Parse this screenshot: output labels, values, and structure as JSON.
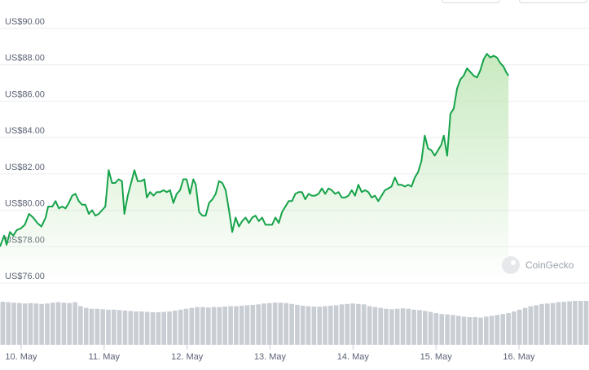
{
  "chart_data": {
    "type": "area",
    "currency_prefix": "US$",
    "y_ticks": [
      "US$90.00",
      "US$88.00",
      "US$86.00",
      "US$84.00",
      "US$82.00",
      "US$80.00",
      "US$78.00",
      "US$76.00"
    ],
    "y_tick_values": [
      90,
      88,
      86,
      84,
      82,
      80,
      78,
      76
    ],
    "x_ticks": [
      "10. May",
      "11. May",
      "12. May",
      "13. May",
      "14. May",
      "15. May",
      "16. May"
    ],
    "x_tick_positions": [
      10.5,
      11.5,
      12.5,
      13.5,
      14.5,
      15.5,
      16.5
    ],
    "xlim": [
      9.95,
      17.05
    ],
    "ylim": [
      75.6,
      90.4
    ],
    "line_color": "#16a34a",
    "fill_color_top": "#bfe6b5",
    "volume_color": "#c9cdd4",
    "price": [
      [
        9.95,
        77.6
      ],
      [
        10.0,
        78.2
      ],
      [
        10.03,
        77.7
      ],
      [
        10.07,
        78.4
      ],
      [
        10.11,
        78.2
      ],
      [
        10.15,
        78.5
      ],
      [
        10.2,
        78.6
      ],
      [
        10.25,
        78.8
      ],
      [
        10.3,
        79.4
      ],
      [
        10.35,
        79.2
      ],
      [
        10.4,
        78.9
      ],
      [
        10.45,
        78.7
      ],
      [
        10.5,
        79.2
      ],
      [
        10.53,
        79.8
      ],
      [
        10.58,
        79.8
      ],
      [
        10.62,
        80.1
      ],
      [
        10.66,
        79.7
      ],
      [
        10.7,
        79.8
      ],
      [
        10.74,
        79.7
      ],
      [
        10.78,
        80.0
      ],
      [
        10.82,
        80.4
      ],
      [
        10.86,
        80.5
      ],
      [
        10.9,
        80.1
      ],
      [
        10.94,
        79.9
      ],
      [
        10.98,
        79.9
      ],
      [
        11.02,
        79.4
      ],
      [
        11.06,
        79.6
      ],
      [
        11.1,
        79.3
      ],
      [
        11.14,
        79.4
      ],
      [
        11.18,
        79.6
      ],
      [
        11.22,
        79.8
      ],
      [
        11.26,
        81.8
      ],
      [
        11.3,
        81.1
      ],
      [
        11.34,
        81.1
      ],
      [
        11.38,
        81.3
      ],
      [
        11.42,
        81.2
      ],
      [
        11.45,
        79.4
      ],
      [
        11.49,
        80.4
      ],
      [
        11.53,
        81.1
      ],
      [
        11.57,
        81.8
      ],
      [
        11.61,
        81.2
      ],
      [
        11.65,
        81.2
      ],
      [
        11.69,
        81.3
      ],
      [
        11.72,
        80.3
      ],
      [
        11.76,
        80.6
      ],
      [
        11.8,
        80.4
      ],
      [
        11.84,
        80.6
      ],
      [
        11.88,
        80.6
      ],
      [
        11.92,
        80.7
      ],
      [
        11.96,
        80.6
      ],
      [
        12.0,
        80.7
      ],
      [
        12.04,
        80.0
      ],
      [
        12.08,
        80.5
      ],
      [
        12.12,
        80.7
      ],
      [
        12.16,
        81.3
      ],
      [
        12.2,
        81.3
      ],
      [
        12.24,
        80.5
      ],
      [
        12.28,
        81.3
      ],
      [
        12.31,
        81.0
      ],
      [
        12.35,
        79.5
      ],
      [
        12.39,
        79.3
      ],
      [
        12.43,
        79.3
      ],
      [
        12.47,
        80.0
      ],
      [
        12.51,
        80.2
      ],
      [
        12.55,
        80.5
      ],
      [
        12.59,
        81.2
      ],
      [
        12.63,
        81.1
      ],
      [
        12.67,
        80.7
      ],
      [
        12.71,
        79.6
      ],
      [
        12.75,
        78.4
      ],
      [
        12.79,
        79.2
      ],
      [
        12.83,
        78.7
      ],
      [
        12.87,
        79.0
      ],
      [
        12.91,
        79.2
      ],
      [
        12.95,
        78.9
      ],
      [
        12.99,
        79.2
      ],
      [
        13.03,
        79.3
      ],
      [
        13.07,
        79.0
      ],
      [
        13.11,
        79.2
      ],
      [
        13.15,
        78.8
      ],
      [
        13.19,
        78.8
      ],
      [
        13.23,
        78.8
      ],
      [
        13.27,
        79.2
      ],
      [
        13.31,
        78.9
      ],
      [
        13.35,
        79.5
      ],
      [
        13.39,
        79.8
      ],
      [
        13.43,
        80.1
      ],
      [
        13.47,
        80.1
      ],
      [
        13.51,
        80.5
      ],
      [
        13.55,
        80.6
      ],
      [
        13.59,
        80.6
      ],
      [
        13.63,
        80.2
      ],
      [
        13.67,
        80.5
      ],
      [
        13.71,
        80.4
      ],
      [
        13.75,
        80.4
      ],
      [
        13.79,
        80.5
      ],
      [
        13.83,
        80.8
      ],
      [
        13.87,
        80.5
      ],
      [
        13.91,
        80.8
      ],
      [
        13.95,
        80.7
      ],
      [
        13.99,
        80.5
      ],
      [
        14.03,
        80.6
      ],
      [
        14.07,
        80.3
      ],
      [
        14.11,
        80.3
      ],
      [
        14.15,
        80.4
      ],
      [
        14.19,
        80.7
      ],
      [
        14.23,
        80.4
      ],
      [
        14.27,
        81.0
      ],
      [
        14.31,
        80.6
      ],
      [
        14.35,
        80.7
      ],
      [
        14.39,
        80.6
      ],
      [
        14.43,
        80.3
      ],
      [
        14.47,
        80.4
      ],
      [
        14.51,
        80.1
      ],
      [
        14.55,
        80.4
      ],
      [
        14.59,
        80.7
      ],
      [
        14.63,
        80.8
      ],
      [
        14.67,
        80.9
      ],
      [
        14.71,
        81.4
      ],
      [
        14.75,
        81.0
      ],
      [
        14.79,
        81.0
      ],
      [
        14.83,
        80.9
      ],
      [
        14.87,
        81.0
      ],
      [
        14.91,
        80.9
      ],
      [
        14.95,
        81.4
      ],
      [
        14.99,
        81.7
      ],
      [
        15.03,
        82.3
      ],
      [
        15.07,
        83.7
      ],
      [
        15.11,
        83.0
      ],
      [
        15.15,
        82.9
      ],
      [
        15.19,
        82.6
      ],
      [
        15.23,
        82.9
      ],
      [
        15.27,
        83.2
      ],
      [
        15.3,
        83.7
      ],
      [
        15.34,
        82.6
      ],
      [
        15.38,
        84.9
      ],
      [
        15.42,
        85.2
      ],
      [
        15.46,
        86.3
      ],
      [
        15.5,
        86.8
      ],
      [
        15.54,
        87.0
      ],
      [
        15.58,
        87.4
      ],
      [
        15.62,
        87.2
      ],
      [
        15.66,
        87.0
      ],
      [
        15.7,
        86.9
      ],
      [
        15.74,
        87.3
      ],
      [
        15.78,
        87.9
      ],
      [
        15.82,
        88.2
      ],
      [
        15.86,
        88.0
      ],
      [
        15.9,
        88.1
      ],
      [
        15.94,
        88.0
      ],
      [
        15.98,
        87.7
      ],
      [
        16.02,
        87.5
      ],
      [
        16.05,
        87.2
      ],
      [
        16.08,
        87.0
      ]
    ],
    "volume_relative": [
      0.98,
      0.97,
      0.96,
      0.95,
      0.94,
      0.95,
      0.94,
      0.93,
      0.94,
      0.96,
      0.97,
      0.96,
      0.95,
      0.97,
      0.88,
      0.84,
      0.82,
      0.82,
      0.81,
      0.8,
      0.8,
      0.79,
      0.78,
      0.77,
      0.76,
      0.76,
      0.75,
      0.74,
      0.74,
      0.75,
      0.76,
      0.78,
      0.8,
      0.82,
      0.84,
      0.86,
      0.86,
      0.85,
      0.86,
      0.86,
      0.87,
      0.88,
      0.88,
      0.89,
      0.9,
      0.91,
      0.92,
      0.94,
      0.95,
      0.96,
      0.96,
      0.95,
      0.93,
      0.91,
      0.89,
      0.88,
      0.87,
      0.87,
      0.88,
      0.89,
      0.9,
      0.92,
      0.93,
      0.94,
      0.93,
      0.92,
      0.88,
      0.86,
      0.84,
      0.82,
      0.81,
      0.82,
      0.83,
      0.82,
      0.8,
      0.79,
      0.77,
      0.75,
      0.72,
      0.7,
      0.69,
      0.68,
      0.66,
      0.64,
      0.63,
      0.63,
      0.62,
      0.64,
      0.66,
      0.68,
      0.7,
      0.72,
      0.76,
      0.8,
      0.84,
      0.88,
      0.9,
      0.93,
      0.94,
      0.95,
      0.97,
      0.98,
      0.99,
      1.0,
      1.0,
      1.0
    ]
  },
  "watermark": {
    "text": "CoinGecko"
  }
}
